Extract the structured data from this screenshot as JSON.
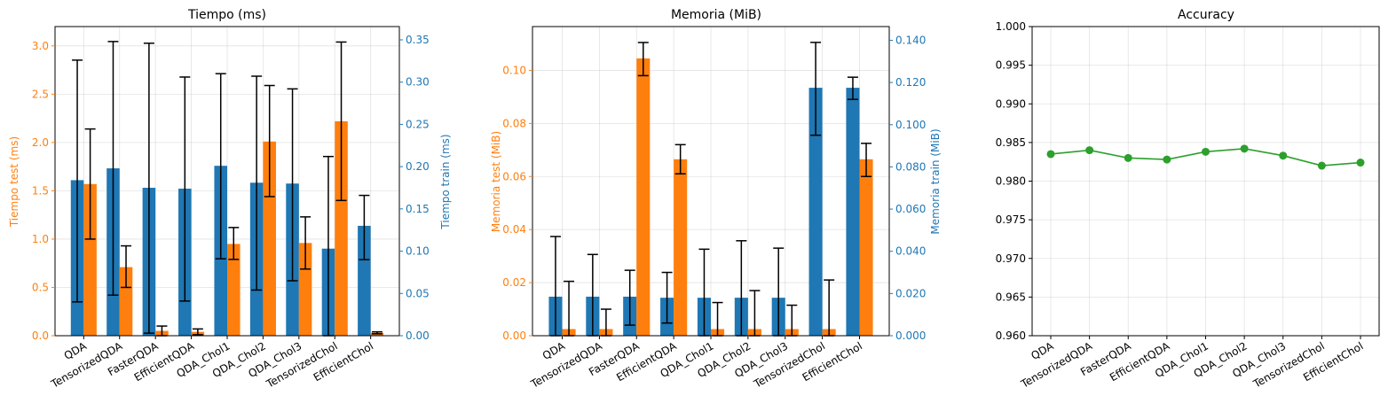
{
  "colors": {
    "test": "#ff7f0e",
    "train": "#1f77b4",
    "accuracy": "#2ca02c",
    "text": "#000000"
  },
  "chart_data": [
    {
      "type": "bar",
      "title": "Tiempo (ms)",
      "ylabel_left": "Tiempo test (ms)",
      "ylabel_right": "Tiempo train (ms)",
      "categories": [
        "QDA",
        "TensorizedQDA",
        "FasterQDA",
        "EfficientQDA",
        "QDA_Chol1",
        "QDA_Chol2",
        "QDA_Chol3",
        "TensorizedChol",
        "EfficientChol"
      ],
      "ylim_left": [
        0,
        3.2
      ],
      "ylim_right": [
        0,
        0.3657
      ],
      "yticks_left": [
        "0.0",
        "0.5",
        "1.0",
        "1.5",
        "2.0",
        "2.5",
        "3.0"
      ],
      "yticks_right": [
        "0.00",
        "0.05",
        "0.10",
        "0.15",
        "0.20",
        "0.25",
        "0.30",
        "0.35"
      ],
      "grid": true,
      "series": [
        {
          "axis": "right",
          "color": "train",
          "values": [
            0.184,
            0.198,
            0.175,
            0.174,
            0.201,
            0.181,
            0.18,
            0.103,
            0.13
          ],
          "err_low": [
            0.04,
            0.048,
            0.003,
            0.041,
            0.091,
            0.054,
            0.065,
            0.0,
            0.09
          ],
          "err_high": [
            0.326,
            0.348,
            0.346,
            0.306,
            0.31,
            0.307,
            0.292,
            0.212,
            0.166
          ]
        },
        {
          "axis": "left",
          "color": "test",
          "values": [
            1.57,
            0.71,
            0.05,
            0.04,
            0.95,
            2.01,
            0.96,
            2.22,
            0.03
          ],
          "err_low": [
            1.0,
            0.5,
            0.0,
            0.01,
            0.79,
            1.44,
            0.69,
            1.4,
            0.02
          ],
          "err_high": [
            2.14,
            0.93,
            0.1,
            0.07,
            1.12,
            2.59,
            1.23,
            3.04,
            0.04
          ]
        }
      ]
    },
    {
      "type": "bar",
      "title": "Memoria (MiB)",
      "ylabel_left": "Memoria test (MiB)",
      "ylabel_right": "Memoria train (MiB)",
      "categories": [
        "QDA",
        "TensorizedQDA",
        "FasterQDA",
        "EfficientQDA",
        "QDA_Chol1",
        "QDA_Chol2",
        "QDA_Chol3",
        "TensorizedChol",
        "EfficientChol"
      ],
      "ylim_left": [
        0,
        0.1165
      ],
      "ylim_right": [
        0,
        0.1465
      ],
      "yticks_left": [
        "0.00",
        "0.02",
        "0.04",
        "0.06",
        "0.08",
        "0.10"
      ],
      "yticks_right": [
        "0.000",
        "0.020",
        "0.040",
        "0.060",
        "0.080",
        "0.100",
        "0.120",
        "0.140"
      ],
      "grid": true,
      "series": [
        {
          "axis": "right",
          "color": "train",
          "values": [
            0.0185,
            0.0185,
            0.0185,
            0.018,
            0.018,
            0.018,
            0.018,
            0.1175,
            0.1175
          ],
          "err_low": [
            0.0,
            0.0,
            0.005,
            0.006,
            0.0,
            0.0,
            0.0,
            0.095,
            0.112
          ],
          "err_high": [
            0.047,
            0.0385,
            0.031,
            0.03,
            0.041,
            0.045,
            0.0415,
            0.139,
            0.1225
          ]
        },
        {
          "axis": "left",
          "color": "test",
          "values": [
            0.0025,
            0.0025,
            0.1045,
            0.0665,
            0.0025,
            0.0025,
            0.0025,
            0.0025,
            0.0665
          ],
          "err_low": [
            0.0,
            0.0,
            0.098,
            0.061,
            0.0,
            0.0,
            0.0,
            0.0,
            0.06
          ],
          "err_high": [
            0.0205,
            0.01,
            0.1105,
            0.072,
            0.0125,
            0.017,
            0.0115,
            0.021,
            0.0725
          ]
        }
      ]
    },
    {
      "type": "line",
      "title": "Accuracy",
      "categories": [
        "QDA",
        "TensorizedQDA",
        "FasterQDA",
        "EfficientQDA",
        "QDA_Chol1",
        "QDA_Chol2",
        "QDA_Chol3",
        "TensorizedChol",
        "EfficientChol"
      ],
      "ylim": [
        0.96,
        1.0
      ],
      "yticks": [
        "0.960",
        "0.965",
        "0.970",
        "0.975",
        "0.980",
        "0.985",
        "0.990",
        "0.995",
        "1.000"
      ],
      "grid": true,
      "series": [
        {
          "color": "accuracy",
          "values": [
            0.9835,
            0.984,
            0.983,
            0.9828,
            0.9838,
            0.9842,
            0.9833,
            0.982,
            0.9824
          ]
        }
      ]
    }
  ]
}
